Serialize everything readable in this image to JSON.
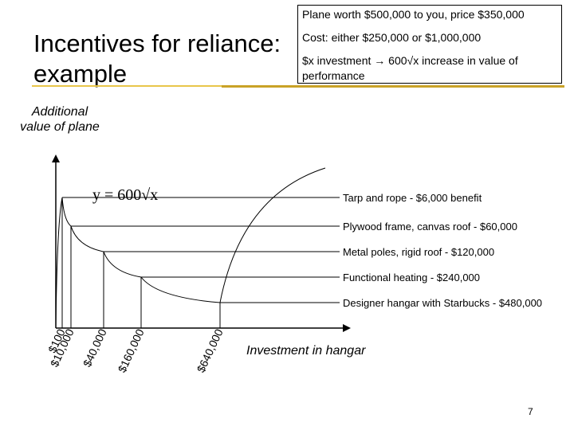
{
  "slide": {
    "title_line1": "Incentives for reliance:",
    "title_line2": "example",
    "page_number": "7"
  },
  "notes": {
    "line1": "Plane worth $500,000 to you, price $350,000",
    "line2": "Cost: either $250,000 or $1,000,000",
    "line3": "$x investment → 600√x increase in value of",
    "line4": "performance"
  },
  "diagram": {
    "y_axis_label": "Additional value of plane",
    "x_axis_label": "Investment in hangar",
    "formula": "y = 600√x",
    "curve_function": "y = 600*sqrt(x)",
    "levels": [
      {
        "investment": 100,
        "x_label": "$100",
        "label": "Tarp and rope - $6,000 benefit"
      },
      {
        "investment": 10000,
        "x_label": "$10,000",
        "label": "Plywood frame, canvas roof - $60,000"
      },
      {
        "investment": 40000,
        "x_label": "$40,000",
        "label": "Metal poles, rigid roof - $120,000"
      },
      {
        "investment": 160000,
        "x_label": "$160,000",
        "label": "Functional heating - $240,000"
      },
      {
        "investment": 640000,
        "x_label": "$640,000",
        "label": "Designer hangar with Starbucks - $480,000"
      }
    ]
  },
  "colors": {
    "title_rule": "#c9a227",
    "title_rule_light": "#e8c64a"
  }
}
